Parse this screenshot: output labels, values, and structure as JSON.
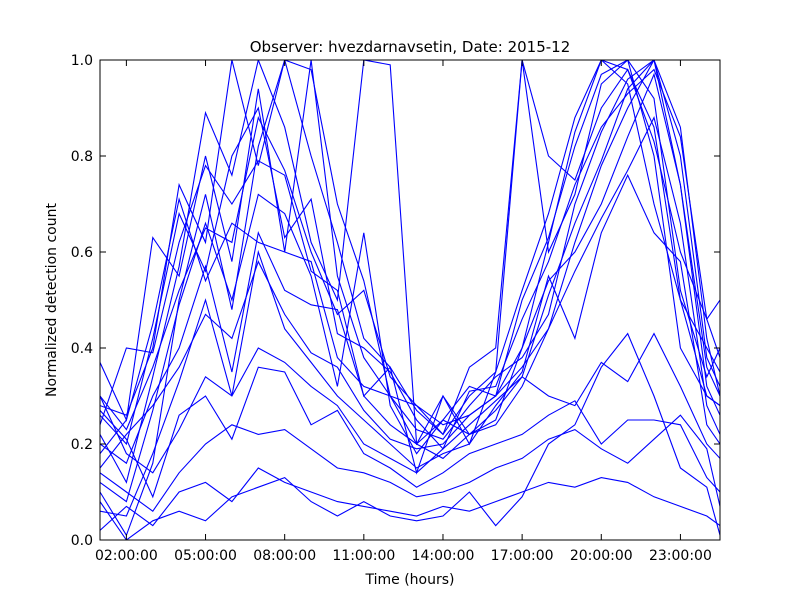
{
  "chart_data": {
    "type": "line",
    "title": "Observer: hvezdarnavsetin, Date: 2015-12",
    "xlabel": "Time (hours)",
    "ylabel": "Normalized detection count",
    "xlim": [
      1,
      24.5
    ],
    "ylim": [
      0,
      1
    ],
    "xticks": [
      2,
      5,
      8,
      11,
      14,
      17,
      20,
      23
    ],
    "xtick_labels": [
      "02:00:00",
      "05:00:00",
      "08:00:00",
      "11:00:00",
      "14:00:00",
      "17:00:00",
      "20:00:00",
      "23:00:00"
    ],
    "yticks": [
      0,
      0.2,
      0.4,
      0.6,
      0.8,
      1.0
    ],
    "ytick_labels": [
      "0.0",
      "0.2",
      "0.4",
      "0.6",
      "0.8",
      "1.0"
    ],
    "line_color": "#0000ff",
    "grid": false,
    "x": [
      1,
      2,
      3,
      4,
      5,
      6,
      7,
      8,
      9,
      10,
      11,
      12,
      13,
      14,
      15,
      16,
      17,
      18,
      19,
      20,
      21,
      22,
      23,
      24,
      24.5
    ],
    "series": [
      {
        "values": [
          0.37,
          0.25,
          0.63,
          0.55,
          0.8,
          0.58,
          0.94,
          0.6,
          1.0,
          0.55,
          0.38,
          0.3,
          0.2,
          0.3,
          0.22,
          0.25,
          0.4,
          0.62,
          0.85,
          1.0,
          0.95,
          0.7,
          0.5,
          0.4,
          0.35
        ]
      },
      {
        "values": [
          0.28,
          0.26,
          0.4,
          0.74,
          0.62,
          1.0,
          0.78,
          1.0,
          0.8,
          0.62,
          0.42,
          0.36,
          0.27,
          0.22,
          0.3,
          0.35,
          0.52,
          0.68,
          0.88,
          1.0,
          0.98,
          0.86,
          0.5,
          0.3,
          0.28
        ]
      },
      {
        "values": [
          0.22,
          0.12,
          0.34,
          0.57,
          0.89,
          0.76,
          1.0,
          0.86,
          0.62,
          0.5,
          1.0,
          0.99,
          0.2,
          0.25,
          0.32,
          0.3,
          0.5,
          0.63,
          0.82,
          0.97,
          1.0,
          0.8,
          0.4,
          0.3,
          0.28
        ]
      },
      {
        "values": [
          0.1,
          0.01,
          0.16,
          0.5,
          0.72,
          0.48,
          0.82,
          1.0,
          0.98,
          0.7,
          0.54,
          0.3,
          0.28,
          0.22,
          0.36,
          0.4,
          1.0,
          0.8,
          0.75,
          0.9,
          0.98,
          0.83,
          0.6,
          0.46,
          0.5
        ]
      },
      {
        "values": [
          0.24,
          0.4,
          0.39,
          0.62,
          0.78,
          0.7,
          0.79,
          0.76,
          0.56,
          0.52,
          0.3,
          0.36,
          0.14,
          0.3,
          0.2,
          0.35,
          1.0,
          0.6,
          0.72,
          0.95,
          1.0,
          0.92,
          0.52,
          0.34,
          0.4
        ]
      },
      {
        "values": [
          0.18,
          0.25,
          0.45,
          0.71,
          0.54,
          0.66,
          0.62,
          0.6,
          0.58,
          0.38,
          0.32,
          0.3,
          0.23,
          0.21,
          0.28,
          0.34,
          0.38,
          0.47,
          0.7,
          0.85,
          0.96,
          1.0,
          0.8,
          0.38,
          0.32
        ]
      },
      {
        "values": [
          0.3,
          0.23,
          0.36,
          0.52,
          0.65,
          0.62,
          0.88,
          0.77,
          0.6,
          0.47,
          0.52,
          0.34,
          0.28,
          0.24,
          0.26,
          0.3,
          0.36,
          0.44,
          0.62,
          0.78,
          0.9,
          1.0,
          0.86,
          0.42,
          0.3
        ]
      },
      {
        "values": [
          0.26,
          0.2,
          0.42,
          0.68,
          0.56,
          0.8,
          0.9,
          0.63,
          0.71,
          0.43,
          0.4,
          0.35,
          0.25,
          0.19,
          0.31,
          0.32,
          0.46,
          0.58,
          0.74,
          0.86,
          0.93,
          0.98,
          0.84,
          0.46,
          0.38
        ]
      },
      {
        "values": [
          0.12,
          0.08,
          0.27,
          0.49,
          0.66,
          0.5,
          0.72,
          0.68,
          0.55,
          0.32,
          0.64,
          0.28,
          0.18,
          0.25,
          0.22,
          0.27,
          0.34,
          0.51,
          0.66,
          0.79,
          0.94,
          1.0,
          0.74,
          0.36,
          0.3
        ]
      },
      {
        "values": [
          0.2,
          0.16,
          0.3,
          0.4,
          0.57,
          0.35,
          0.64,
          0.52,
          0.49,
          0.48,
          0.3,
          0.24,
          0.2,
          0.17,
          0.22,
          0.24,
          0.32,
          0.44,
          0.56,
          0.67,
          0.77,
          0.88,
          0.66,
          0.28,
          0.22
        ]
      },
      {
        "values": [
          0.15,
          0.22,
          0.28,
          0.36,
          0.47,
          0.42,
          0.58,
          0.47,
          0.39,
          0.36,
          0.27,
          0.21,
          0.19,
          0.2,
          0.26,
          0.3,
          0.4,
          0.54,
          0.6,
          0.7,
          0.84,
          0.97,
          0.74,
          0.32,
          0.26
        ]
      },
      {
        "values": [
          0.06,
          0.05,
          0.18,
          0.33,
          0.5,
          0.3,
          0.6,
          0.44,
          0.37,
          0.3,
          0.25,
          0.2,
          0.15,
          0.18,
          0.2,
          0.28,
          0.35,
          0.55,
          0.42,
          0.64,
          0.76,
          0.64,
          0.58,
          0.24,
          0.2
        ]
      },
      {
        "values": [
          0.3,
          0.18,
          0.14,
          0.23,
          0.34,
          0.3,
          0.4,
          0.37,
          0.32,
          0.28,
          0.2,
          0.17,
          0.14,
          0.19,
          0.24,
          0.29,
          0.34,
          0.3,
          0.28,
          0.37,
          0.33,
          0.43,
          0.32,
          0.2,
          0.17
        ]
      },
      {
        "values": [
          0.27,
          0.21,
          0.09,
          0.26,
          0.3,
          0.21,
          0.36,
          0.35,
          0.24,
          0.27,
          0.18,
          0.15,
          0.11,
          0.14,
          0.18,
          0.2,
          0.22,
          0.26,
          0.29,
          0.2,
          0.25,
          0.25,
          0.24,
          0.13,
          0.1
        ]
      },
      {
        "values": [
          0.14,
          0.1,
          0.06,
          0.14,
          0.2,
          0.24,
          0.22,
          0.23,
          0.19,
          0.15,
          0.14,
          0.12,
          0.09,
          0.1,
          0.12,
          0.15,
          0.17,
          0.21,
          0.23,
          0.19,
          0.16,
          0.21,
          0.26,
          0.19,
          0.07
        ]
      },
      {
        "values": [
          0.02,
          0.07,
          0.03,
          0.1,
          0.12,
          0.08,
          0.15,
          0.12,
          0.1,
          0.08,
          0.07,
          0.06,
          0.05,
          0.07,
          0.06,
          0.08,
          0.1,
          0.12,
          0.11,
          0.13,
          0.12,
          0.09,
          0.07,
          0.05,
          0.03
        ]
      },
      {
        "values": [
          0.08,
          0.0,
          0.04,
          0.06,
          0.04,
          0.09,
          0.11,
          0.13,
          0.08,
          0.05,
          0.08,
          0.05,
          0.04,
          0.05,
          0.1,
          0.03,
          0.09,
          0.2,
          0.24,
          0.36,
          0.43,
          0.3,
          0.15,
          0.11,
          0.01
        ]
      }
    ]
  }
}
